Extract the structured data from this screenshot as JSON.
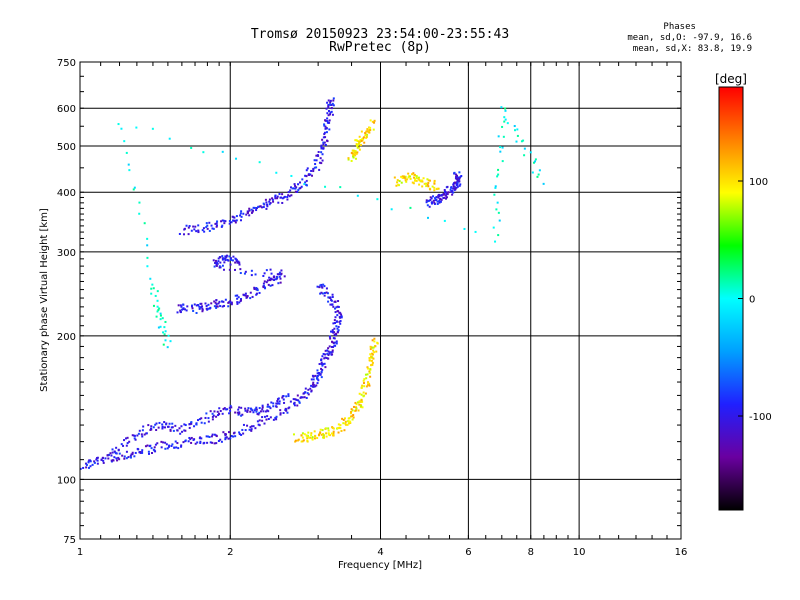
{
  "header": {
    "title_line1": "Tromsø 20150923 23:54:00-23:55:43",
    "title_line2": "RwPretec (8p)"
  },
  "stats": {
    "heading": "Phases",
    "line_o": "mean, sd,O: -97.9, 16.6",
    "line_x": "mean, sd,X:  83.8, 19.9"
  },
  "chart_data": {
    "type": "scatter",
    "title": "Tromsø 20150923 23:54:00-23:55:43",
    "subtitle": "RwPretec (8p)",
    "xlabel": "Frequency [MHz]",
    "ylabel": "Stationary phase Virtual Height [km]",
    "x_scale": "log",
    "y_scale": "log",
    "xlim": [
      1,
      16
    ],
    "ylim": [
      75,
      750
    ],
    "x_ticks": [
      1,
      2,
      4,
      6,
      8,
      10,
      16
    ],
    "x_tick_labels": [
      "1",
      "2",
      "4",
      "6",
      "8",
      "10",
      "16"
    ],
    "y_ticks": [
      75,
      100,
      200,
      300,
      400,
      500,
      600,
      750
    ],
    "y_tick_labels": [
      "75",
      "100",
      "200",
      "300",
      "400",
      "500",
      "600",
      "750"
    ],
    "grid": true,
    "colorbar": {
      "label": "[deg]",
      "range": [
        -180,
        180
      ],
      "ticks": [
        100,
        0,
        -100
      ],
      "tick_labels": [
        "100",
        "0",
        "-100"
      ],
      "colors": [
        "#000000",
        "#6a00a0",
        "#2020ff",
        "#00a0ff",
        "#00ffff",
        "#00ff00",
        "#ffff00",
        "#ff8000",
        "#ff0000"
      ]
    },
    "series": [
      {
        "color_phase": -100,
        "points": [
          [
            1.0,
            106
          ],
          [
            1.1,
            110
          ],
          [
            1.2,
            112
          ],
          [
            1.35,
            115
          ],
          [
            1.5,
            118
          ],
          [
            1.7,
            120
          ],
          [
            1.9,
            122
          ],
          [
            2.1,
            126
          ],
          [
            2.4,
            134
          ],
          [
            2.7,
            145
          ],
          [
            2.9,
            155
          ],
          [
            3.0,
            165
          ],
          [
            3.1,
            178
          ],
          [
            3.2,
            190
          ],
          [
            3.25,
            205
          ],
          [
            3.3,
            222
          ],
          [
            3.2,
            240
          ],
          [
            3.0,
            255
          ]
        ]
      },
      {
        "color_phase": -100,
        "points": [
          [
            1.15,
            112
          ],
          [
            1.3,
            125
          ],
          [
            1.45,
            130
          ],
          [
            1.6,
            127
          ],
          [
            1.8,
            135
          ],
          [
            2.0,
            140
          ],
          [
            2.2,
            138
          ],
          [
            2.4,
            142
          ],
          [
            2.6,
            150
          ]
        ]
      },
      {
        "color_phase": -100,
        "points": [
          [
            1.55,
            228
          ],
          [
            1.7,
            228
          ],
          [
            1.85,
            232
          ],
          [
            2.0,
            236
          ],
          [
            2.2,
            245
          ],
          [
            2.4,
            258
          ],
          [
            2.55,
            268
          ],
          [
            1.85,
            280
          ],
          [
            1.95,
            290
          ],
          [
            2.1,
            286
          ]
        ]
      },
      {
        "color_phase": -100,
        "points": [
          [
            1.6,
            332
          ],
          [
            1.8,
            338
          ],
          [
            2.0,
            350
          ],
          [
            2.2,
            365
          ],
          [
            2.4,
            380
          ],
          [
            2.6,
            395
          ],
          [
            2.8,
            420
          ],
          [
            3.0,
            460
          ],
          [
            3.1,
            520
          ],
          [
            3.15,
            580
          ],
          [
            3.2,
            630
          ]
        ]
      },
      {
        "color_phase": -100,
        "points": [
          [
            5.0,
            380
          ],
          [
            5.2,
            385
          ],
          [
            5.4,
            395
          ],
          [
            5.6,
            408
          ],
          [
            5.75,
            420
          ],
          [
            5.7,
            432
          ]
        ]
      },
      {
        "color_phase": 100,
        "points": [
          [
            2.7,
            122
          ],
          [
            2.9,
            123
          ],
          [
            3.1,
            125
          ],
          [
            3.3,
            128
          ],
          [
            3.5,
            135
          ],
          [
            3.65,
            145
          ],
          [
            3.75,
            160
          ],
          [
            3.85,
            180
          ],
          [
            3.9,
            195
          ]
        ]
      },
      {
        "color_phase": 100,
        "points": [
          [
            3.5,
            470
          ],
          [
            3.6,
            500
          ],
          [
            3.7,
            520
          ],
          [
            3.85,
            560
          ]
        ]
      },
      {
        "color_phase": 100,
        "points": [
          [
            4.3,
            420
          ],
          [
            4.6,
            430
          ],
          [
            4.9,
            420
          ],
          [
            5.2,
            410
          ]
        ]
      },
      {
        "color_phase": 0,
        "points": [
          [
            1.4,
            250
          ],
          [
            1.5,
            190
          ],
          [
            1.2,
            560
          ],
          [
            6.8,
            320
          ],
          [
            7.0,
            600
          ],
          [
            8.5,
            420
          ]
        ]
      }
    ]
  }
}
